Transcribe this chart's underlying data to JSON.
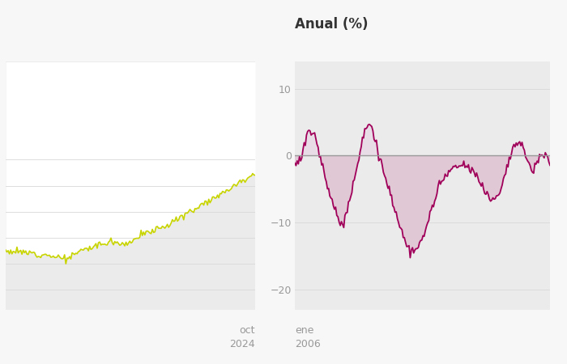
{
  "title_right": "Anual (%)",
  "title_fontsize": 12,
  "bg_color": "#f7f7f7",
  "plot_bg_color": "#ebebeb",
  "line_color_left": "#c8d400",
  "line_color_right": "#a0005a",
  "fill_color_right_neg": "#e0c8d4",
  "fill_color_right_pos": "#e8d8e4",
  "zero_line_color": "#999999",
  "grid_color": "#d8d8d8",
  "tick_color": "#999999",
  "label_left_bottom": [
    "oct",
    "2024"
  ],
  "label_right_bottom": [
    "ene",
    "2006"
  ],
  "yticks_right": [
    10,
    0,
    -10,
    -20
  ],
  "ylim_left": [
    82,
    158
  ],
  "ylim_right": [
    -23,
    14
  ],
  "white_fill_color": "#ffffff"
}
